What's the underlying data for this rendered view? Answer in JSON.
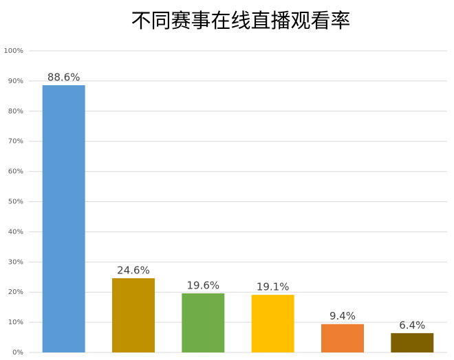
{
  "chart_data": {
    "type": "bar",
    "title": "不同赛事在线直播观看率",
    "categories": [
      null,
      null,
      null,
      null,
      null,
      null
    ],
    "values": [
      88.6,
      24.6,
      19.6,
      19.1,
      9.4,
      6.4
    ],
    "value_labels": [
      "88.6%",
      "24.6%",
      "19.6%",
      "19.1%",
      "9.4%",
      "6.4%"
    ],
    "colors": [
      "#5b9bd5",
      "#bf9000",
      "#70ad47",
      "#ffc000",
      "#ed7d31",
      "#7f6000"
    ],
    "ylim": [
      0,
      100
    ],
    "yticks": [
      {
        "value": 0,
        "label": "0%"
      },
      {
        "value": 10,
        "label": "10%"
      },
      {
        "value": 20,
        "label": "20%"
      },
      {
        "value": 30,
        "label": "30%"
      },
      {
        "value": 40,
        "label": "40%"
      },
      {
        "value": 50,
        "label": "50%"
      },
      {
        "value": 60,
        "label": "60%"
      },
      {
        "value": 70,
        "label": "70%"
      },
      {
        "value": 80,
        "label": "80%"
      },
      {
        "value": 90,
        "label": "90%"
      },
      {
        "value": 100,
        "label": "100%"
      }
    ],
    "grid": true
  }
}
